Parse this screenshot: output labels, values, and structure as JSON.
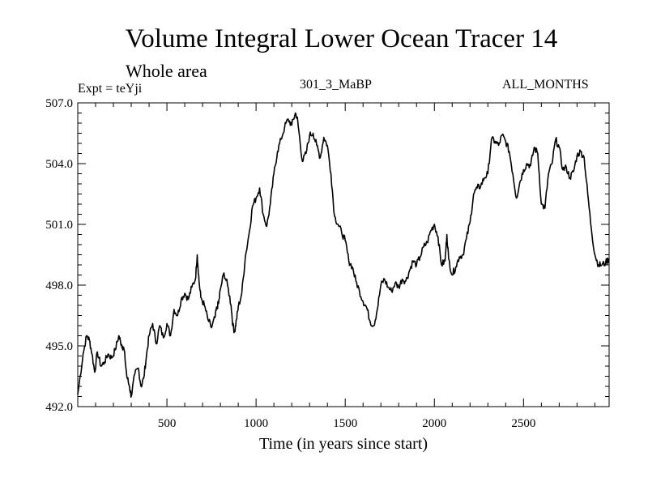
{
  "chart_data": {
    "type": "line",
    "title": "Volume Integral Lower Ocean Tracer 14",
    "subtitle": "Whole area",
    "expt_label": "Expt = teYji",
    "center_label": "301_3_MaBP",
    "right_label": "ALL_MONTHS",
    "xlabel": "Time (in years since start)",
    "ylabel": "",
    "xlim": [
      0,
      2980
    ],
    "ylim": [
      492.0,
      507.0
    ],
    "x_ticks": [
      500,
      1000,
      1500,
      2000,
      2500
    ],
    "x_tick_labels": [
      "500",
      "1000",
      "1500",
      "2000",
      "2500"
    ],
    "y_ticks": [
      492.0,
      495.0,
      498.0,
      501.0,
      504.0,
      507.0
    ],
    "y_tick_labels": [
      "492.0",
      "495.0",
      "498.0",
      "501.0",
      "504.0",
      "507.0"
    ],
    "grid": false,
    "series": [
      {
        "name": "Tracer 14",
        "color": "#000000",
        "x": [
          0,
          30,
          50,
          65,
          80,
          95,
          110,
          130,
          150,
          170,
          190,
          210,
          230,
          240,
          250,
          260,
          275,
          290,
          300,
          320,
          340,
          355,
          370,
          385,
          400,
          420,
          440,
          460,
          480,
          500,
          520,
          540,
          560,
          580,
          600,
          620,
          640,
          660,
          670,
          680,
          690,
          710,
          730,
          750,
          770,
          780,
          790,
          800,
          820,
          840,
          860,
          870,
          880,
          890,
          900,
          920,
          940,
          960,
          980,
          1000,
          1020,
          1040,
          1060,
          1080,
          1100,
          1120,
          1140,
          1160,
          1180,
          1200,
          1220,
          1230,
          1240,
          1260,
          1280,
          1300,
          1320,
          1340,
          1360,
          1380,
          1400,
          1420,
          1440,
          1460,
          1480,
          1500,
          1520,
          1540,
          1560,
          1580,
          1600,
          1620,
          1640,
          1660,
          1680,
          1700,
          1720,
          1740,
          1760,
          1780,
          1800,
          1820,
          1840,
          1860,
          1880,
          1900,
          1920,
          1940,
          1960,
          1980,
          2000,
          2020,
          2040,
          2060,
          2070,
          2080,
          2100,
          2120,
          2140,
          2160,
          2180,
          2200,
          2220,
          2240,
          2260,
          2280,
          2300,
          2320,
          2340,
          2360,
          2380,
          2400,
          2420,
          2440,
          2460,
          2480,
          2500,
          2520,
          2540,
          2560,
          2580,
          2600,
          2620,
          2640,
          2660,
          2680,
          2700,
          2720,
          2740,
          2760,
          2780,
          2800,
          2820,
          2840,
          2860,
          2880,
          2900,
          2920,
          2940,
          2960,
          2980
        ],
        "values": [
          492.6,
          494.6,
          495.5,
          495.3,
          494.6,
          493.7,
          494.7,
          494.0,
          494.2,
          494.6,
          494.4,
          494.8,
          495.5,
          495.2,
          495.0,
          494.8,
          493.5,
          493.0,
          492.5,
          493.6,
          493.9,
          493.0,
          493.4,
          494.5,
          495.5,
          496.1,
          495.1,
          496.0,
          495.4,
          496.1,
          495.5,
          496.8,
          496.5,
          497.3,
          497.6,
          497.3,
          497.9,
          498.3,
          499.5,
          498.2,
          497.4,
          497.0,
          496.3,
          495.9,
          496.4,
          496.9,
          497.1,
          497.8,
          498.6,
          498.0,
          497.0,
          496.0,
          495.7,
          496.3,
          496.9,
          497.6,
          499.4,
          500.5,
          501.9,
          502.3,
          502.8,
          501.5,
          500.9,
          502.0,
          503.5,
          504.6,
          505.2,
          505.8,
          506.2,
          505.9,
          506.5,
          506.3,
          505.6,
          504.1,
          504.5,
          505.4,
          505.5,
          504.9,
          504.3,
          505.3,
          504.9,
          503.5,
          501.4,
          501.0,
          500.6,
          500.2,
          499.2,
          498.9,
          498.2,
          497.7,
          497.2,
          496.9,
          496.2,
          496.0,
          496.8,
          498.0,
          498.3,
          497.9,
          497.7,
          498.1,
          497.9,
          498.3,
          498.2,
          498.7,
          499.2,
          499.0,
          499.4,
          499.9,
          500.1,
          500.7,
          501.0,
          500.4,
          499.0,
          499.2,
          500.5,
          499.3,
          498.5,
          498.9,
          499.4,
          499.5,
          500.3,
          501.1,
          502.5,
          502.8,
          502.9,
          503.3,
          503.5,
          505.2,
          505.1,
          504.9,
          505.4,
          505.1,
          504.6,
          503.5,
          502.3,
          503.1,
          503.7,
          504.0,
          503.9,
          504.8,
          504.5,
          502.0,
          501.8,
          503.5,
          504.0,
          505.2,
          504.8,
          503.7,
          503.8,
          503.3,
          503.6,
          504.4,
          504.6,
          504.3,
          502.5,
          500.8,
          499.5,
          499.0,
          499.0,
          499.1,
          499.3
        ]
      }
    ]
  }
}
